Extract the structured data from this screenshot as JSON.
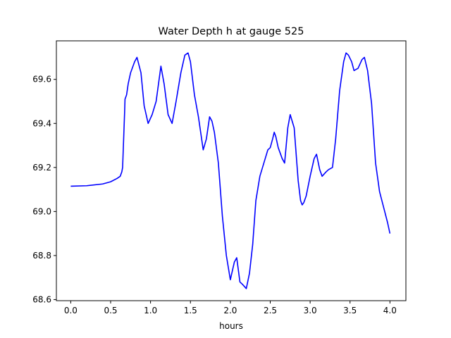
{
  "chart_data": {
    "type": "line",
    "title": "Water Depth h at gauge 525",
    "xlabel": "hours",
    "ylabel": "",
    "xlim": [
      -0.18,
      4.2
    ],
    "ylim": [
      68.595,
      69.775
    ],
    "xticks": [
      0.0,
      0.5,
      1.0,
      1.5,
      2.0,
      2.5,
      3.0,
      3.5,
      4.0
    ],
    "xtick_labels": [
      "0.0",
      "0.5",
      "1.0",
      "1.5",
      "2.0",
      "2.5",
      "3.0",
      "3.5",
      "4.0"
    ],
    "yticks": [
      68.6,
      68.8,
      69.0,
      69.2,
      69.4,
      69.6
    ],
    "ytick_labels": [
      "68.6",
      "68.8",
      "69.0",
      "69.2",
      "69.4",
      "69.6"
    ],
    "grid": false,
    "series": [
      {
        "color": "#0000ff",
        "x": [
          0.0,
          0.2,
          0.4,
          0.5,
          0.58,
          0.62,
          0.64,
          0.65,
          0.655,
          0.66,
          0.675,
          0.68,
          0.7,
          0.72,
          0.75,
          0.8,
          0.83,
          0.88,
          0.92,
          0.97,
          1.02,
          1.07,
          1.13,
          1.17,
          1.22,
          1.27,
          1.32,
          1.38,
          1.43,
          1.47,
          1.5,
          1.55,
          1.6,
          1.66,
          1.7,
          1.74,
          1.77,
          1.8,
          1.85,
          1.9,
          1.95,
          2.0,
          2.05,
          2.08,
          2.12,
          2.15,
          2.2,
          2.24,
          2.28,
          2.32,
          2.37,
          2.42,
          2.47,
          2.5,
          2.53,
          2.55,
          2.57,
          2.6,
          2.65,
          2.68,
          2.72,
          2.75,
          2.8,
          2.85,
          2.88,
          2.9,
          2.92,
          2.95,
          3.0,
          3.05,
          3.08,
          3.12,
          3.15,
          3.2,
          3.23,
          3.28,
          3.32,
          3.37,
          3.42,
          3.45,
          3.48,
          3.52,
          3.55,
          3.6,
          3.65,
          3.68,
          3.72,
          3.77,
          3.82,
          3.87,
          3.92,
          3.97,
          4.0
        ],
        "y": [
          69.115,
          69.117,
          69.125,
          69.135,
          69.15,
          69.16,
          69.18,
          69.2,
          69.25,
          69.3,
          69.45,
          69.51,
          69.53,
          69.58,
          69.63,
          69.68,
          69.7,
          69.63,
          69.48,
          69.4,
          69.44,
          69.5,
          69.66,
          69.58,
          69.44,
          69.4,
          69.5,
          69.63,
          69.71,
          69.72,
          69.68,
          69.53,
          69.43,
          69.28,
          69.33,
          69.43,
          69.41,
          69.36,
          69.22,
          68.98,
          68.8,
          68.69,
          68.77,
          68.79,
          68.68,
          68.67,
          68.65,
          68.72,
          68.85,
          69.05,
          69.16,
          69.22,
          69.28,
          69.29,
          69.33,
          69.36,
          69.34,
          69.29,
          69.24,
          69.22,
          69.38,
          69.44,
          69.38,
          69.14,
          69.05,
          69.03,
          69.04,
          69.07,
          69.16,
          69.24,
          69.26,
          69.19,
          69.16,
          69.18,
          69.19,
          69.2,
          69.33,
          69.55,
          69.68,
          69.72,
          69.71,
          69.68,
          69.64,
          69.65,
          69.69,
          69.7,
          69.64,
          69.49,
          69.22,
          69.09,
          69.02,
          68.95,
          68.9
        ]
      }
    ]
  }
}
